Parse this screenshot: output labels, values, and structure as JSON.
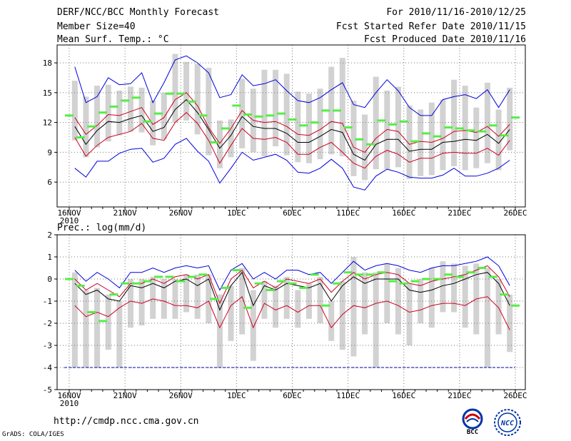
{
  "header": {
    "title": "DERF/NCC/BCC Monthly Forecast",
    "member_size": "Member Size=40",
    "variable1": "Mean Surf. Temp.: °C",
    "period": "For 2010/11/16-2010/12/25",
    "fcst_started": "Fcst Started Refer Date 2010/11/15",
    "fcst_produced": "Fcst Produced Date 2010/11/16"
  },
  "footer": {
    "url": "http://cmdp.ncc.cma.gov.cn",
    "grads": "GrADS: COLA/IGES",
    "logo_bcc_text": "BCC",
    "logo_ncc_text": "NCC"
  },
  "colors": {
    "envelope": "#0000dd",
    "spread": "#cc0022",
    "mean": "#000000",
    "bar": "#d2d2d2",
    "green": "#55ee44",
    "grid": "#777777"
  },
  "chart_data": [
    {
      "type": "line",
      "title": "Mean Surf. Temp.: °C",
      "x_tick_labels": [
        "16NOV",
        "21NOV",
        "26NOV",
        "1DEC",
        "6DEC",
        "11DEC",
        "16DEC",
        "21DEC",
        "26DEC"
      ],
      "x_tick_index": [
        0,
        5,
        10,
        15,
        20,
        25,
        30,
        35,
        40
      ],
      "x_year_label": "2010",
      "y_ticks": [
        6,
        9,
        12,
        15,
        18
      ],
      "ylim": [
        3.5,
        19.8
      ],
      "days": 40,
      "series": [
        {
          "name": "max",
          "values": [
            17.6,
            14.0,
            14.6,
            16.5,
            15.8,
            15.9,
            17.0,
            14.0,
            16.0,
            18.3,
            18.7,
            18.0,
            17.0,
            14.5,
            14.8,
            16.8,
            15.7,
            15.9,
            16.3,
            15.2,
            14.2,
            14.0,
            14.5,
            15.3,
            16.0,
            13.8,
            13.5,
            15.0,
            16.3,
            15.2,
            13.5,
            12.7,
            12.7,
            14.3,
            14.6,
            14.8,
            14.4,
            15.3,
            13.5,
            15.3
          ]
        },
        {
          "name": "upper",
          "values": [
            12.5,
            10.8,
            11.7,
            12.8,
            12.7,
            13.1,
            13.5,
            11.8,
            12.5,
            14.3,
            15.0,
            13.7,
            11.5,
            9.9,
            11.4,
            13.2,
            12.2,
            12.0,
            12.1,
            11.6,
            10.8,
            10.7,
            11.3,
            12.1,
            11.9,
            9.5,
            9.0,
            10.4,
            11.3,
            11.1,
            9.8,
            10.1,
            10.0,
            10.4,
            11.1,
            11.2,
            11.0,
            11.6,
            10.6,
            11.8
          ]
        },
        {
          "name": "mean",
          "values": [
            11.6,
            9.8,
            11.2,
            12.1,
            12.0,
            12.4,
            12.7,
            11.1,
            11.5,
            13.3,
            14.3,
            13.0,
            11.3,
            9.4,
            10.7,
            12.6,
            11.6,
            11.4,
            11.4,
            10.9,
            10.0,
            10.0,
            10.6,
            11.3,
            11.0,
            8.8,
            8.2,
            9.8,
            10.3,
            10.3,
            9.1,
            9.3,
            9.3,
            10.0,
            10.1,
            10.3,
            10.2,
            10.8,
            9.9,
            11.3
          ]
        },
        {
          "name": "lower",
          "values": [
            10.5,
            8.6,
            9.7,
            10.5,
            10.8,
            11.1,
            11.9,
            10.4,
            10.2,
            12.0,
            13.0,
            11.9,
            10.2,
            7.9,
            9.7,
            11.4,
            10.4,
            10.3,
            10.5,
            10.0,
            8.8,
            8.8,
            9.5,
            10.0,
            9.0,
            7.9,
            7.4,
            8.6,
            9.2,
            8.8,
            8.0,
            8.4,
            8.4,
            8.9,
            9.0,
            8.9,
            8.9,
            9.4,
            8.7,
            10.2
          ]
        },
        {
          "name": "min",
          "values": [
            7.4,
            6.5,
            8.1,
            8.1,
            8.9,
            9.3,
            9.4,
            8.0,
            8.4,
            9.8,
            10.4,
            9.1,
            8.1,
            5.9,
            7.4,
            9.0,
            8.2,
            8.5,
            8.8,
            8.2,
            7.0,
            6.9,
            7.4,
            8.3,
            7.4,
            5.5,
            5.2,
            6.6,
            7.3,
            7.0,
            6.5,
            6.4,
            6.4,
            6.7,
            7.4,
            6.6,
            6.6,
            6.9,
            7.4,
            8.2
          ]
        }
      ],
      "bars": [
        [
          10.2,
          16.2
        ],
        [
          8.5,
          14.6
        ],
        [
          9.5,
          15.7
        ],
        [
          10.1,
          15.8
        ],
        [
          10.7,
          15.2
        ],
        [
          11.1,
          15.6
        ],
        [
          11.0,
          15.5
        ],
        [
          9.7,
          14.2
        ],
        [
          10.3,
          15.0
        ],
        [
          12.0,
          18.9
        ],
        [
          12.2,
          18.1
        ],
        [
          10.8,
          17.9
        ],
        [
          8.7,
          17.5
        ],
        [
          7.4,
          12.2
        ],
        [
          8.5,
          12.3
        ],
        [
          9.4,
          16.4
        ],
        [
          9.0,
          15.4
        ],
        [
          8.6,
          17.3
        ],
        [
          9.6,
          17.3
        ],
        [
          8.7,
          16.9
        ],
        [
          8.0,
          15.1
        ],
        [
          7.9,
          14.9
        ],
        [
          8.3,
          15.4
        ],
        [
          8.8,
          17.6
        ],
        [
          8.6,
          18.5
        ],
        [
          6.6,
          14.2
        ],
        [
          6.2,
          12.8
        ],
        [
          7.3,
          16.6
        ],
        [
          7.3,
          15.2
        ],
        [
          7.5,
          15.6
        ],
        [
          6.3,
          13.7
        ],
        [
          6.6,
          13.3
        ],
        [
          6.7,
          14.0
        ],
        [
          7.2,
          14.3
        ],
        [
          7.6,
          16.3
        ],
        [
          7.2,
          15.7
        ],
        [
          7.4,
          13.5
        ],
        [
          7.9,
          16.0
        ],
        [
          7.2,
          13.3
        ],
        [
          9.2,
          15.5
        ]
      ],
      "ensemble_marks": [
        12.7,
        10.5,
        11.6,
        13.0,
        13.6,
        14.2,
        14.5,
        12.1,
        12.9,
        14.9,
        14.9,
        14.1,
        12.7,
        10.0,
        11.4,
        13.7,
        12.8,
        12.6,
        12.7,
        12.9,
        12.3,
        11.7,
        12.0,
        13.2,
        13.2,
        11.5,
        10.3,
        9.8,
        12.2,
        11.8,
        12.1,
        10.1,
        10.9,
        10.6,
        11.5,
        11.4,
        11.2,
        11.1,
        11.7,
        10.7,
        12.5
      ]
    },
    {
      "type": "line",
      "title": "Prec.: log(mm/d)",
      "x_tick_labels": [
        "16NOV",
        "21NOV",
        "26NOV",
        "1DEC",
        "6DEC",
        "11DEC",
        "16DEC",
        "21DEC",
        "26DEC"
      ],
      "x_tick_index": [
        0,
        5,
        10,
        15,
        20,
        25,
        30,
        35,
        40
      ],
      "x_year_label": "2010",
      "y_ticks": [
        -5,
        -4,
        -3,
        -2,
        -1,
        0,
        1,
        2
      ],
      "ylim": [
        -5,
        2
      ],
      "reference_line": -4,
      "days": 40,
      "series": [
        {
          "name": "max",
          "values": [
            0.4,
            -0.1,
            0.3,
            0.0,
            -0.4,
            0.3,
            0.3,
            0.5,
            0.3,
            0.5,
            0.6,
            0.5,
            0.6,
            -0.5,
            0.4,
            0.7,
            0.0,
            0.3,
            0.0,
            0.4,
            0.4,
            0.2,
            0.3,
            -0.2,
            0.3,
            0.8,
            0.4,
            0.6,
            0.7,
            0.6,
            0.4,
            0.3,
            0.5,
            0.6,
            0.6,
            0.7,
            0.8,
            1.0,
            0.6,
            -0.3
          ]
        },
        {
          "name": "upper",
          "values": [
            0.0,
            -0.5,
            -0.2,
            -0.5,
            -0.8,
            -0.2,
            -0.2,
            0.0,
            -0.2,
            0.1,
            0.2,
            0.0,
            0.2,
            -1.1,
            0.0,
            0.4,
            -0.4,
            -0.1,
            -0.4,
            0.0,
            -0.1,
            -0.2,
            0.0,
            -0.6,
            -0.1,
            0.3,
            0.0,
            0.2,
            0.3,
            0.2,
            -0.2,
            -0.3,
            -0.1,
            0.0,
            0.1,
            0.2,
            0.4,
            0.6,
            0.1,
            -0.8
          ]
        },
        {
          "name": "mean",
          "values": [
            -0.2,
            -0.7,
            -0.5,
            -0.9,
            -1.0,
            -0.3,
            -0.4,
            -0.2,
            -0.4,
            -0.1,
            0.0,
            -0.3,
            0.0,
            -1.4,
            -0.3,
            0.3,
            -1.2,
            -0.3,
            -0.5,
            -0.2,
            -0.3,
            -0.4,
            -0.2,
            -1.0,
            -0.3,
            0.1,
            -0.2,
            0.0,
            0.0,
            0.0,
            -0.5,
            -0.6,
            -0.5,
            -0.3,
            -0.2,
            0.0,
            0.2,
            0.3,
            -0.2,
            -1.2
          ]
        },
        {
          "name": "lower",
          "values": [
            -1.2,
            -1.7,
            -1.5,
            -1.7,
            -1.3,
            -1.0,
            -1.1,
            -0.9,
            -1.0,
            -1.2,
            -1.2,
            -1.3,
            -1.0,
            -2.2,
            -1.2,
            -0.8,
            -2.2,
            -1.1,
            -1.4,
            -1.2,
            -1.5,
            -1.2,
            -1.2,
            -2.2,
            -1.6,
            -1.2,
            -1.3,
            -1.1,
            -1.0,
            -1.2,
            -1.5,
            -1.4,
            -1.2,
            -1.1,
            -1.1,
            -1.2,
            -0.9,
            -0.8,
            -1.3,
            -2.3
          ]
        }
      ],
      "bars": [
        [
          -4.0,
          0.3
        ],
        [
          -4.0,
          -0.5
        ],
        [
          -4.0,
          -0.4
        ],
        [
          -3.2,
          -0.7
        ],
        [
          -4.0,
          -1.0
        ],
        [
          -2.2,
          0.0
        ],
        [
          -2.1,
          0.0
        ],
        [
          -1.8,
          0.1
        ],
        [
          -1.8,
          0.0
        ],
        [
          -1.8,
          0.0
        ],
        [
          -1.5,
          0.2
        ],
        [
          -1.8,
          0.2
        ],
        [
          -2.0,
          0.2
        ],
        [
          -4.0,
          -0.7
        ],
        [
          -2.8,
          -0.3
        ],
        [
          -2.5,
          0.5
        ],
        [
          -3.7,
          -0.5
        ],
        [
          -1.8,
          -0.1
        ],
        [
          -2.2,
          -0.3
        ],
        [
          -1.8,
          0.1
        ],
        [
          -2.2,
          -0.5
        ],
        [
          -1.8,
          -0.2
        ],
        [
          -2.0,
          0.1
        ],
        [
          -2.8,
          -1.0
        ],
        [
          -3.2,
          -0.1
        ],
        [
          -3.5,
          1.0
        ],
        [
          -2.5,
          0.3
        ],
        [
          -4.0,
          0.3
        ],
        [
          -2.0,
          0.7
        ],
        [
          -2.5,
          0.5
        ],
        [
          -3.0,
          -0.2
        ],
        [
          -2.0,
          0.0
        ],
        [
          -2.2,
          0.5
        ],
        [
          -1.5,
          0.8
        ],
        [
          -1.5,
          0.7
        ],
        [
          -2.2,
          0.6
        ],
        [
          -2.5,
          0.7
        ],
        [
          -4.0,
          0.5
        ],
        [
          -2.5,
          0.0
        ],
        [
          -3.3,
          -0.7
        ]
      ],
      "ensemble_marks": [
        0.0,
        -0.3,
        -1.5,
        -1.9,
        -0.7,
        -0.2,
        -0.2,
        -0.1,
        0.1,
        0.1,
        -0.1,
        0.1,
        0.2,
        -0.9,
        -0.4,
        0.4,
        -1.3,
        -0.2,
        -0.5,
        -0.1,
        -0.2,
        -0.4,
        0.2,
        -1.2,
        -0.2,
        0.3,
        0.2,
        0.2,
        0.3,
        -0.1,
        -0.2,
        -0.1,
        0.0,
        0.0,
        0.2,
        0.1,
        0.3,
        0.5,
        0.1,
        -0.7,
        -1.2
      ]
    }
  ]
}
